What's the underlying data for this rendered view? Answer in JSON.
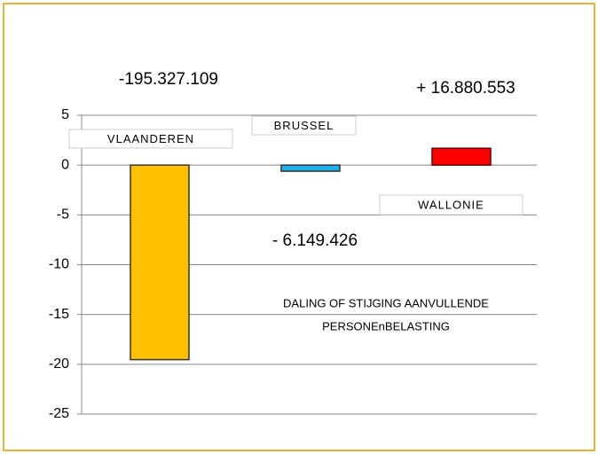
{
  "chart_data": {
    "type": "bar",
    "categories": [
      "VLAANDEREN",
      "BRUSSEL",
      "WALLONIE"
    ],
    "values": [
      -19.5327109,
      -0.6149426,
      1.6880553
    ],
    "value_labels": [
      "-195.327.109",
      "- 6.149.426",
      "+ 16.880.553"
    ],
    "colors": [
      "#ffc000",
      "#1ab0ec",
      "#ff0000"
    ],
    "ylim": [
      -25,
      5
    ],
    "yticks": [
      -25,
      -20,
      -15,
      -10,
      -5,
      0,
      5
    ],
    "grid": true,
    "annotation": [
      "DALING OF STIJGING AANVULLENDE",
      "PERSONEnBELASTING"
    ]
  }
}
